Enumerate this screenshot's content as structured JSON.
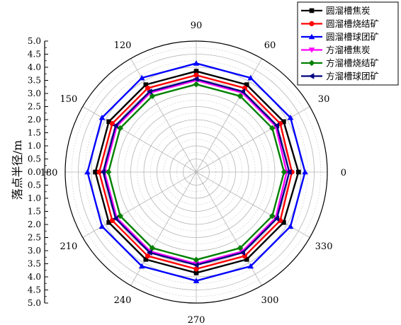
{
  "chart_data": {
    "type": "polar-line",
    "ylabel": "落点半径/m",
    "radial_range": [
      0,
      5.0
    ],
    "radial_major_step": 0.5,
    "radial_ticks": [
      "5.0",
      "4.5",
      "4.0",
      "3.5",
      "3.0",
      "2.5",
      "2.0",
      "1.5",
      "1.0",
      "0.5",
      "0.0",
      "0.5",
      "1.0",
      "1.5",
      "2.0",
      "2.5",
      "3.0",
      "3.5",
      "4.0",
      "4.5",
      "5.0"
    ],
    "angle_ticks": [
      "0",
      "30",
      "60",
      "90",
      "120",
      "150",
      "180",
      "210",
      "240",
      "270",
      "300",
      "330"
    ],
    "angles": [
      0,
      30,
      60,
      90,
      120,
      150,
      180,
      210,
      240,
      270,
      300,
      330
    ],
    "grid": true,
    "legend_position": "top-right",
    "series": [
      {
        "name": "圆溜槽焦炭",
        "color": "#000000",
        "marker": "square",
        "values": [
          3.9,
          3.85,
          3.85,
          3.85,
          3.85,
          3.85,
          3.85,
          3.85,
          3.85,
          3.85,
          3.85,
          3.85
        ]
      },
      {
        "name": "圆溜槽烧结矿",
        "color": "#ff0000",
        "marker": "circle",
        "values": [
          3.65,
          3.7,
          3.7,
          3.7,
          3.7,
          3.7,
          3.7,
          3.7,
          3.7,
          3.7,
          3.7,
          3.7
        ]
      },
      {
        "name": "圆溜槽球团矿",
        "color": "#0000ff",
        "marker": "triangle-up",
        "values": [
          4.15,
          4.15,
          4.15,
          4.15,
          4.15,
          4.15,
          4.15,
          4.15,
          4.15,
          4.15,
          4.15,
          4.15
        ]
      },
      {
        "name": "方溜槽焦炭",
        "color": "#ff00ff",
        "marker": "triangle-down",
        "values": [
          3.45,
          3.5,
          3.5,
          3.5,
          3.5,
          3.5,
          3.5,
          3.5,
          3.5,
          3.5,
          3.5,
          3.5
        ]
      },
      {
        "name": "方溜槽烧结矿",
        "color": "#008000",
        "marker": "diamond",
        "values": [
          3.35,
          3.35,
          3.35,
          3.35,
          3.35,
          3.35,
          3.35,
          3.35,
          3.35,
          3.35,
          3.35,
          3.35
        ]
      },
      {
        "name": "方溜槽球团矿",
        "color": "#000080",
        "marker": "triangle-left",
        "values": [
          3.55,
          3.55,
          3.55,
          3.55,
          3.55,
          3.55,
          3.55,
          3.55,
          3.55,
          3.55,
          3.55,
          3.55
        ]
      }
    ]
  }
}
